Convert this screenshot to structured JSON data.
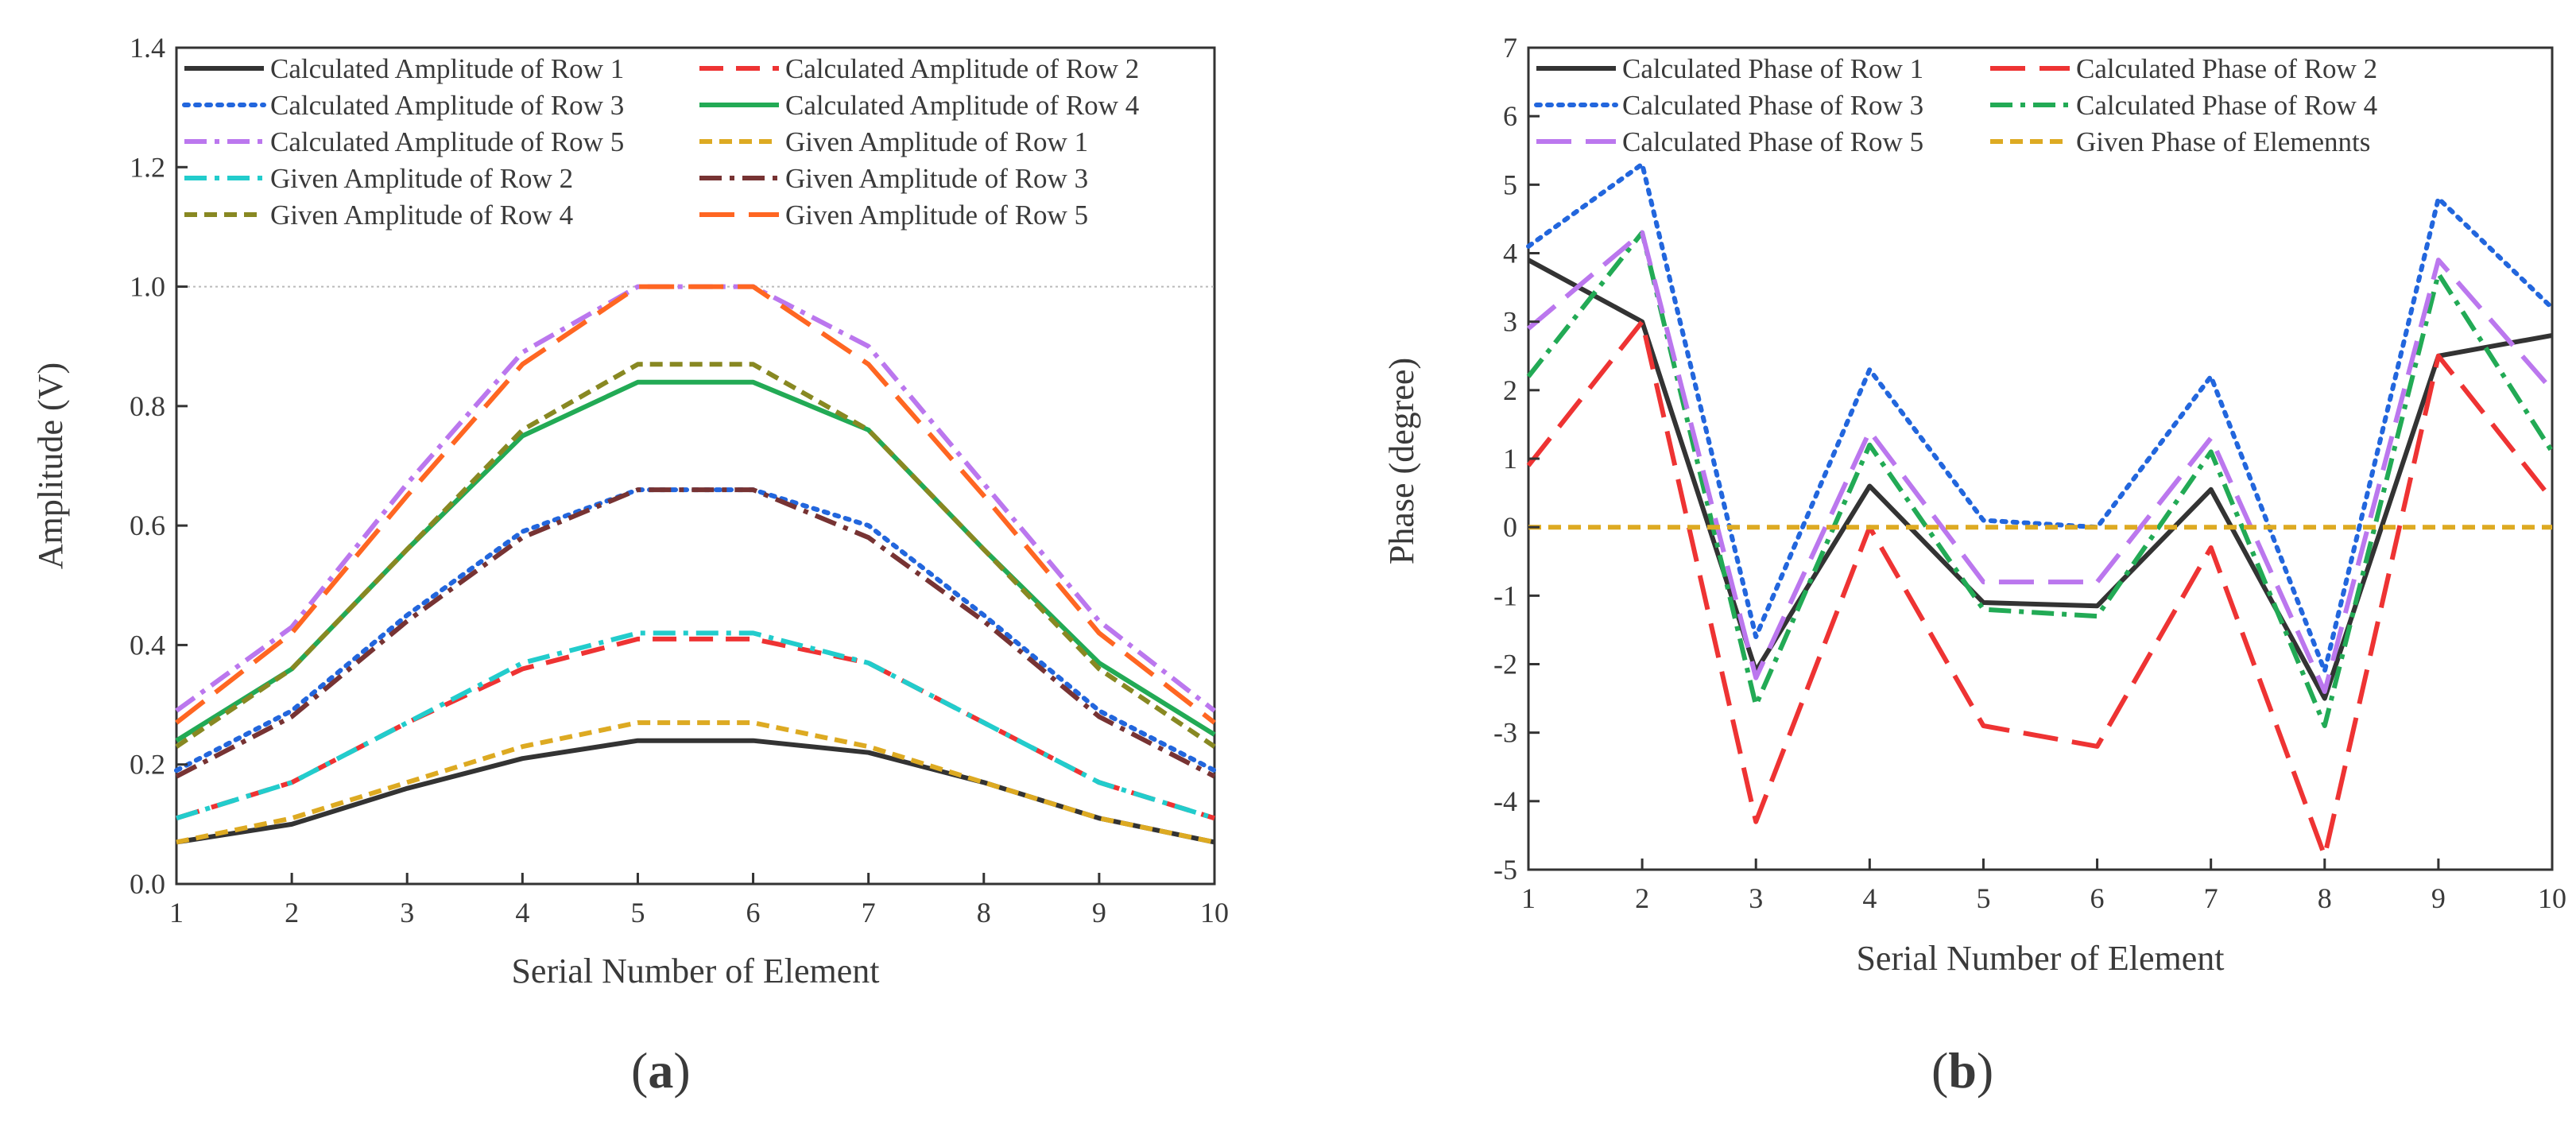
{
  "chart_data": [
    {
      "type": "line",
      "panel_label": "a",
      "title": "",
      "xlabel": "Serial Number of Element",
      "ylabel": "Amplitude (V)",
      "xlim": [
        1,
        10
      ],
      "ylim": [
        0.0,
        1.4
      ],
      "x_ticks": [
        1,
        2,
        3,
        4,
        5,
        6,
        7,
        8,
        9,
        10
      ],
      "y_ticks": [
        "0.0",
        "0.2",
        "0.4",
        "0.6",
        "0.8",
        "1.0",
        "1.2",
        "1.4"
      ],
      "y_tick_values": [
        0.0,
        0.2,
        0.4,
        0.6,
        0.8,
        1.0,
        1.2,
        1.4
      ],
      "reference_line": 1.0,
      "x": [
        1,
        2,
        3,
        4,
        5,
        6,
        7,
        8,
        9,
        10
      ],
      "legend_location": "top",
      "series": [
        {
          "name": "Calculated Amplitude of Row 1",
          "color": "#333333",
          "dash": "solid",
          "values": [
            0.07,
            0.1,
            0.16,
            0.21,
            0.24,
            0.24,
            0.22,
            0.17,
            0.11,
            0.07
          ]
        },
        {
          "name": "Calculated Amplitude of Row 2",
          "color": "#ee3333",
          "dash": "dash",
          "values": [
            0.11,
            0.17,
            0.27,
            0.36,
            0.41,
            0.41,
            0.37,
            0.27,
            0.17,
            0.11
          ]
        },
        {
          "name": "Calculated Amplitude of Row 3",
          "color": "#2266dd",
          "dash": "dot",
          "values": [
            0.19,
            0.29,
            0.45,
            0.59,
            0.66,
            0.66,
            0.6,
            0.45,
            0.29,
            0.19
          ]
        },
        {
          "name": "Calculated Amplitude of Row 4",
          "color": "#22aa55",
          "dash": "solid",
          "values": [
            0.24,
            0.36,
            0.56,
            0.75,
            0.84,
            0.84,
            0.76,
            0.56,
            0.37,
            0.25
          ]
        },
        {
          "name": "Calculated Amplitude of Row 5",
          "color": "#bb77ee",
          "dash": "dashdot",
          "values": [
            0.29,
            0.43,
            0.67,
            0.89,
            1.0,
            1.0,
            0.9,
            0.67,
            0.44,
            0.29
          ]
        },
        {
          "name": "Given Amplitude of Row 1",
          "color": "#ddaa22",
          "dash": "shortdash",
          "values": [
            0.07,
            0.11,
            0.17,
            0.23,
            0.27,
            0.27,
            0.23,
            0.17,
            0.11,
            0.07
          ]
        },
        {
          "name": "Given Amplitude of Row 2",
          "color": "#22cccc",
          "dash": "dashdot",
          "values": [
            0.11,
            0.17,
            0.27,
            0.37,
            0.42,
            0.42,
            0.37,
            0.27,
            0.17,
            0.11
          ]
        },
        {
          "name": "Given Amplitude of Row 3",
          "color": "#773333",
          "dash": "dashdot",
          "values": [
            0.18,
            0.28,
            0.44,
            0.58,
            0.66,
            0.66,
            0.58,
            0.44,
            0.28,
            0.18
          ]
        },
        {
          "name": "Given Amplitude of Row 4",
          "color": "#888822",
          "dash": "shortdash",
          "values": [
            0.23,
            0.36,
            0.56,
            0.76,
            0.87,
            0.87,
            0.76,
            0.56,
            0.36,
            0.23
          ]
        },
        {
          "name": "Given Amplitude of Row 5",
          "color": "#ff6622",
          "dash": "longdash",
          "values": [
            0.27,
            0.42,
            0.65,
            0.87,
            1.0,
            1.0,
            0.87,
            0.65,
            0.42,
            0.27
          ]
        }
      ]
    },
    {
      "type": "line",
      "panel_label": "b",
      "title": "",
      "xlabel": "Serial Number of Element",
      "ylabel": "Phase (degree)",
      "xlim": [
        1,
        10
      ],
      "ylim": [
        -5,
        7
      ],
      "x_ticks": [
        1,
        2,
        3,
        4,
        5,
        6,
        7,
        8,
        9,
        10
      ],
      "y_ticks": [
        "-5",
        "-4",
        "-3",
        "-2",
        "-1",
        "0",
        "1",
        "2",
        "3",
        "4",
        "5",
        "6",
        "7"
      ],
      "y_tick_values": [
        -5,
        -4,
        -3,
        -2,
        -1,
        0,
        1,
        2,
        3,
        4,
        5,
        6,
        7
      ],
      "x": [
        1,
        2,
        3,
        4,
        5,
        6,
        7,
        8,
        9,
        10
      ],
      "legend_location": "top",
      "series": [
        {
          "name": "Calculated Phase of Row 1",
          "color": "#333333",
          "dash": "solid",
          "values": [
            3.9,
            3.0,
            -2.1,
            0.6,
            -1.1,
            -1.15,
            0.55,
            -2.5,
            2.5,
            2.8
          ]
        },
        {
          "name": "Calculated Phase of Row 2",
          "color": "#ee3333",
          "dash": "longdash",
          "values": [
            0.9,
            3.0,
            -4.3,
            0.0,
            -2.9,
            -3.2,
            -0.3,
            -4.8,
            2.5,
            0.4
          ]
        },
        {
          "name": "Calculated Phase of Row 3",
          "color": "#2266dd",
          "dash": "dot",
          "values": [
            4.1,
            5.3,
            -1.6,
            2.3,
            0.1,
            0.0,
            2.2,
            -2.1,
            4.8,
            3.2
          ]
        },
        {
          "name": "Calculated Phase of Row 4",
          "color": "#22aa55",
          "dash": "dashdot",
          "values": [
            2.2,
            4.3,
            -2.6,
            1.2,
            -1.2,
            -1.3,
            1.1,
            -2.9,
            3.7,
            1.1
          ]
        },
        {
          "name": "Calculated Phase of Row 5",
          "color": "#bb77ee",
          "dash": "longdash",
          "values": [
            2.9,
            4.3,
            -2.2,
            1.4,
            -0.8,
            -0.8,
            1.3,
            -2.4,
            3.9,
            2.0
          ]
        },
        {
          "name": "Given Phase of Elemennts",
          "color": "#ddaa22",
          "dash": "shortdash",
          "values": [
            0,
            0,
            0,
            0,
            0,
            0,
            0,
            0,
            0,
            0
          ]
        }
      ]
    }
  ]
}
